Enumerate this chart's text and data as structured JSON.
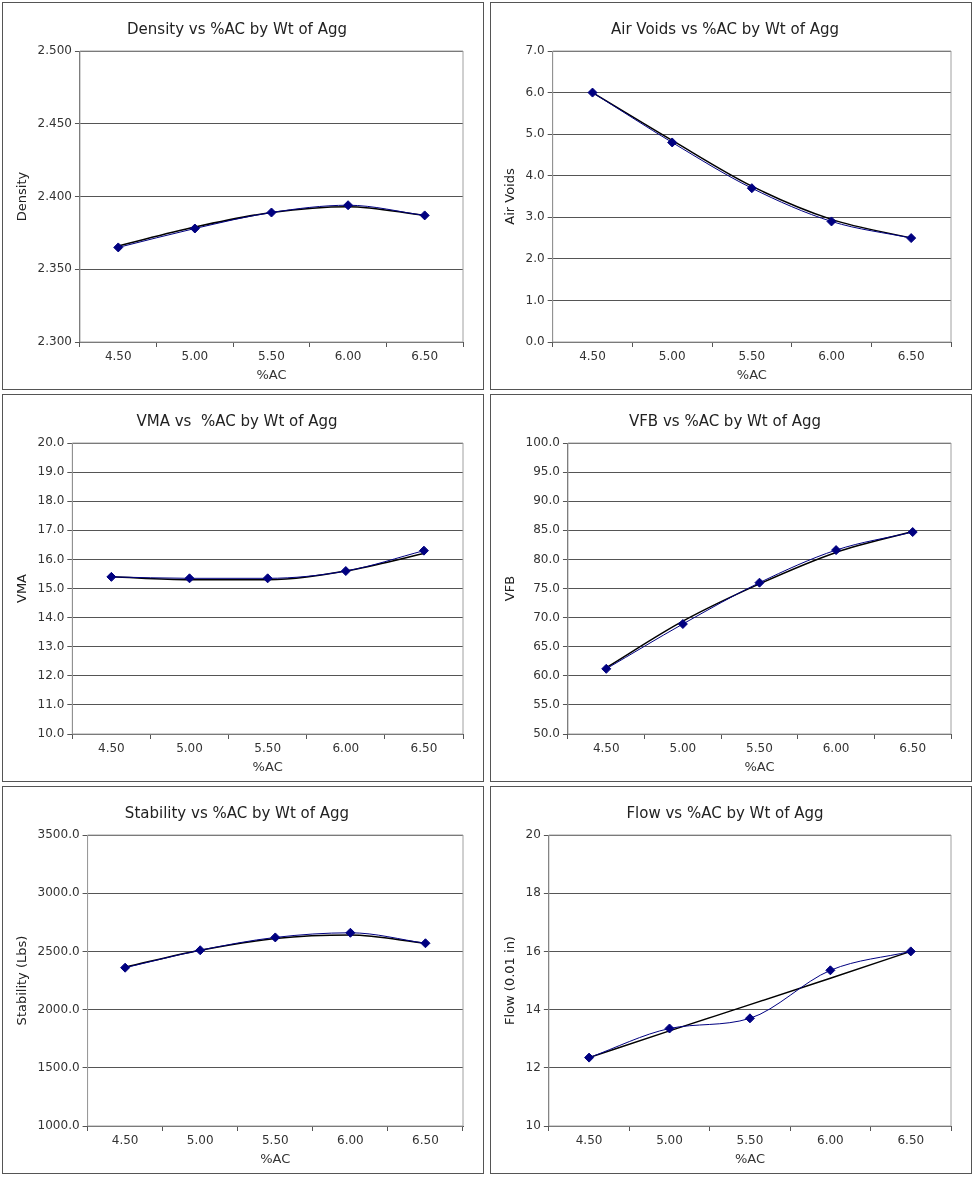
{
  "chart_data": [
    {
      "type": "line",
      "title": "Density vs %AC by Wt of Agg",
      "xlabel": "%AC",
      "ylabel": "Density",
      "categories": [
        "4.50",
        "5.00",
        "5.50",
        "6.00",
        "6.50"
      ],
      "ylim": [
        2.3,
        2.5
      ],
      "yticks": [
        {
          "value": 2.3,
          "label": "2.300"
        },
        {
          "value": 2.35,
          "label": "2.350"
        },
        {
          "value": 2.4,
          "label": "2.400"
        },
        {
          "value": 2.45,
          "label": "2.450"
        },
        {
          "value": 2.5,
          "label": "2.500"
        }
      ],
      "grid": "y",
      "marker": "diamond",
      "series": [
        {
          "color": "#000080",
          "values": [
            2.365,
            2.378,
            2.389,
            2.394,
            2.387
          ]
        },
        {
          "color": "#000000",
          "marker": "none",
          "values": [
            2.366,
            2.379,
            2.389,
            2.393,
            2.387
          ]
        }
      ]
    },
    {
      "type": "line",
      "title": "Air Voids vs %AC by Wt of Agg",
      "xlabel": "%AC",
      "ylabel": "Air Voids",
      "categories": [
        "4.50",
        "5.00",
        "5.50",
        "6.00",
        "6.50"
      ],
      "ylim": [
        0,
        7
      ],
      "yticks": [
        {
          "value": 0,
          "label": "0.0"
        },
        {
          "value": 1,
          "label": "1.0"
        },
        {
          "value": 2,
          "label": "2.0"
        },
        {
          "value": 3,
          "label": "3.0"
        },
        {
          "value": 4,
          "label": "4.0"
        },
        {
          "value": 5,
          "label": "5.0"
        },
        {
          "value": 6,
          "label": "6.0"
        },
        {
          "value": 7,
          "label": "7.0"
        }
      ],
      "grid": "y",
      "marker": "diamond",
      "series": [
        {
          "color": "#000080",
          "values": [
            6.0,
            4.8,
            3.7,
            2.9,
            2.5
          ]
        },
        {
          "color": "#000000",
          "marker": "none",
          "values": [
            6.0,
            4.85,
            3.75,
            2.95,
            2.5
          ]
        }
      ]
    },
    {
      "type": "line",
      "title": "VMA vs  %AC by Wt of Agg",
      "xlabel": "%AC",
      "ylabel": "VMA",
      "categories": [
        "4.50",
        "5.00",
        "5.50",
        "6.00",
        "6.50"
      ],
      "ylim": [
        10,
        20
      ],
      "yticks": [
        {
          "value": 10,
          "label": "10.0"
        },
        {
          "value": 11,
          "label": "11.0"
        },
        {
          "value": 12,
          "label": "12.0"
        },
        {
          "value": 13,
          "label": "13.0"
        },
        {
          "value": 14,
          "label": "14.0"
        },
        {
          "value": 15,
          "label": "15.0"
        },
        {
          "value": 16,
          "label": "16.0"
        },
        {
          "value": 17,
          "label": "17.0"
        },
        {
          "value": 18,
          "label": "18.0"
        },
        {
          "value": 19,
          "label": "19.0"
        },
        {
          "value": 20,
          "label": "20.0"
        }
      ],
      "grid": "y",
      "marker": "diamond",
      "series": [
        {
          "color": "#000080",
          "values": [
            15.4,
            15.35,
            15.35,
            15.6,
            16.3
          ]
        },
        {
          "color": "#000000",
          "marker": "none",
          "values": [
            15.4,
            15.3,
            15.3,
            15.6,
            16.2
          ]
        }
      ]
    },
    {
      "type": "line",
      "title": "VFB vs %AC by Wt of Agg",
      "xlabel": "%AC",
      "ylabel": "VFB",
      "categories": [
        "4.50",
        "5.00",
        "5.50",
        "6.00",
        "6.50"
      ],
      "ylim": [
        50,
        100
      ],
      "yticks": [
        {
          "value": 50,
          "label": "50.0"
        },
        {
          "value": 55,
          "label": "55.0"
        },
        {
          "value": 60,
          "label": "60.0"
        },
        {
          "value": 65,
          "label": "65.0"
        },
        {
          "value": 70,
          "label": "70.0"
        },
        {
          "value": 75,
          "label": "75.0"
        },
        {
          "value": 80,
          "label": "80.0"
        },
        {
          "value": 85,
          "label": "85.0"
        },
        {
          "value": 90,
          "label": "90.0"
        },
        {
          "value": 95,
          "label": "95.0"
        },
        {
          "value": 100,
          "label": "100.0"
        }
      ],
      "grid": "y",
      "marker": "diamond",
      "series": [
        {
          "color": "#000080",
          "values": [
            61.2,
            68.9,
            76.0,
            81.6,
            84.7
          ]
        },
        {
          "color": "#000000",
          "marker": "none",
          "values": [
            61.4,
            69.4,
            75.8,
            81.2,
            84.8
          ]
        }
      ]
    },
    {
      "type": "line",
      "title": "Stability vs %AC by Wt of Agg",
      "xlabel": "%AC",
      "ylabel": "Stability (Lbs)",
      "categories": [
        "4.50",
        "5.00",
        "5.50",
        "6.00",
        "6.50"
      ],
      "ylim": [
        1000,
        3500
      ],
      "yticks": [
        {
          "value": 1000,
          "label": "1000.0"
        },
        {
          "value": 1500,
          "label": "1500.0"
        },
        {
          "value": 2000,
          "label": "2000.0"
        },
        {
          "value": 2500,
          "label": "2500.0"
        },
        {
          "value": 3000,
          "label": "3000.0"
        },
        {
          "value": 3500,
          "label": "3500.0"
        }
      ],
      "grid": "y",
      "marker": "diamond",
      "series": [
        {
          "color": "#000080",
          "values": [
            2360,
            2510,
            2620,
            2660,
            2570
          ]
        },
        {
          "color": "#000000",
          "marker": "none",
          "values": [
            2365,
            2510,
            2610,
            2640,
            2570
          ]
        }
      ]
    },
    {
      "type": "line",
      "title": "Flow vs %AC by Wt of Agg",
      "xlabel": "%AC",
      "ylabel": "Flow (0.01 in)",
      "categories": [
        "4.50",
        "5.00",
        "5.50",
        "6.00",
        "6.50"
      ],
      "ylim": [
        10,
        20
      ],
      "yticks": [
        10,
        12,
        14,
        16,
        18,
        20
      ],
      "grid": "y",
      "marker": "diamond",
      "series": [
        {
          "color": "#000080",
          "values": [
            12.35,
            13.35,
            13.7,
            15.35,
            16.0
          ]
        },
        {
          "color": "#000000",
          "marker": "none",
          "values": [
            12.35,
            13.27,
            14.17,
            15.08,
            16.0
          ]
        }
      ]
    }
  ]
}
